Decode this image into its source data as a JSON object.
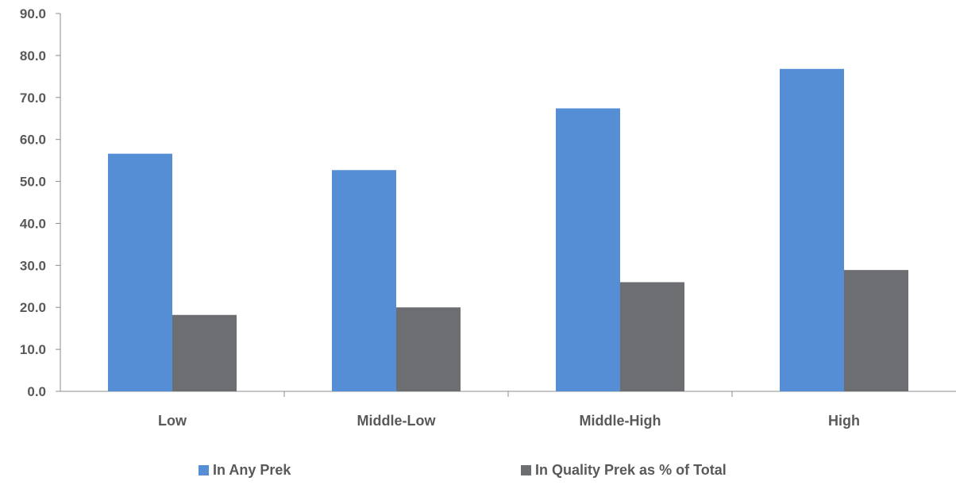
{
  "chart_data": {
    "type": "bar",
    "title": "",
    "xlabel": "",
    "ylabel": "",
    "categories": [
      "Low",
      "Middle-Low",
      "Middle-High",
      "High"
    ],
    "series": [
      {
        "name": "In Any Prek",
        "values": [
          56.6,
          52.7,
          67.4,
          76.8
        ],
        "color": "#558ed5"
      },
      {
        "name": "In Quality Prek as % of Total",
        "values": [
          18.2,
          20.0,
          26.0,
          28.9
        ],
        "color": "#6d6e71"
      }
    ],
    "ylim": [
      0,
      90
    ],
    "yticks": [
      "0.0",
      "10.0",
      "20.0",
      "30.0",
      "40.0",
      "50.0",
      "60.0",
      "70.0",
      "80.0",
      "90.0"
    ],
    "grid": false,
    "legend_position": "bottom"
  }
}
